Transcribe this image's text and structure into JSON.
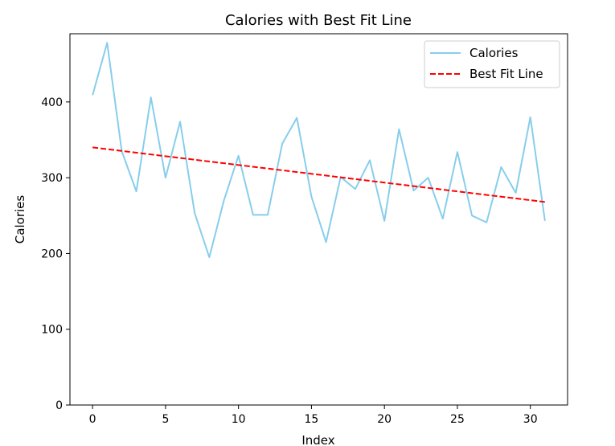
{
  "chart_data": {
    "type": "line",
    "title": "Calories with Best Fit Line",
    "xlabel": "Index",
    "ylabel": "Calories",
    "xlim": [
      -1.55,
      32.55
    ],
    "ylim": [
      0,
      490
    ],
    "xticks": [
      "0",
      "5",
      "10",
      "15",
      "20",
      "25",
      "30"
    ],
    "yticks": [
      "0",
      "100",
      "200",
      "300",
      "400"
    ],
    "grid": false,
    "legend_position": "top-right",
    "series": [
      {
        "name": "Calories",
        "style": "solid",
        "color": "#87ceeb",
        "x": [
          0,
          1,
          2,
          3,
          4,
          5,
          6,
          7,
          8,
          9,
          10,
          11,
          12,
          13,
          14,
          15,
          16,
          17,
          18,
          19,
          20,
          21,
          22,
          23,
          24,
          25,
          26,
          27,
          28,
          29,
          30,
          31
        ],
        "y": [
          409,
          478,
          335,
          282,
          406,
          300,
          374,
          253,
          195,
          270,
          329,
          251,
          251,
          345,
          379,
          275,
          215,
          301,
          285,
          323,
          243,
          364,
          283,
          300,
          246,
          334,
          250,
          241,
          314,
          280,
          380,
          243
        ]
      },
      {
        "name": "Best Fit Line",
        "style": "dashed",
        "color": "#ff0000",
        "x": [
          0,
          31
        ],
        "y": [
          340,
          268
        ]
      }
    ]
  }
}
